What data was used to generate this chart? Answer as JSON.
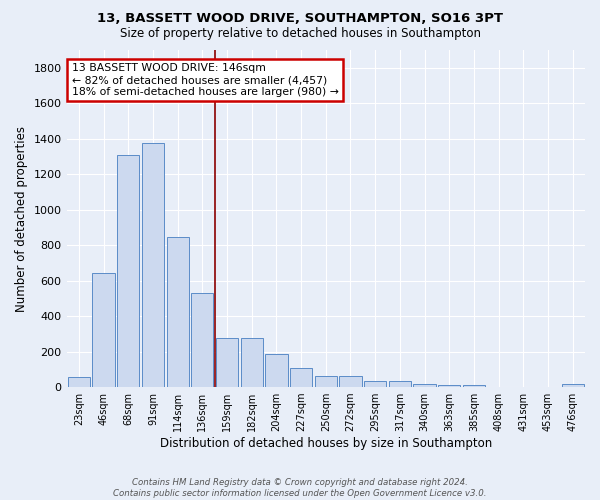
{
  "title_line1": "13, BASSETT WOOD DRIVE, SOUTHAMPTON, SO16 3PT",
  "title_line2": "Size of property relative to detached houses in Southampton",
  "xlabel": "Distribution of detached houses by size in Southampton",
  "ylabel": "Number of detached properties",
  "categories": [
    "23sqm",
    "46sqm",
    "68sqm",
    "91sqm",
    "114sqm",
    "136sqm",
    "159sqm",
    "182sqm",
    "204sqm",
    "227sqm",
    "250sqm",
    "272sqm",
    "295sqm",
    "317sqm",
    "340sqm",
    "363sqm",
    "385sqm",
    "408sqm",
    "431sqm",
    "453sqm",
    "476sqm"
  ],
  "values": [
    55,
    645,
    1310,
    1375,
    845,
    530,
    275,
    275,
    185,
    105,
    65,
    65,
    35,
    35,
    20,
    10,
    10,
    0,
    0,
    0,
    15
  ],
  "bar_facecolor": "#ccd9ef",
  "bar_edgecolor": "#5b8cc8",
  "background_color": "#e8eef8",
  "grid_color": "#ffffff",
  "red_line_x": 5.5,
  "annotation_text_line1": "13 BASSETT WOOD DRIVE: 146sqm",
  "annotation_text_line2": "← 82% of detached houses are smaller (4,457)",
  "annotation_text_line3": "18% of semi-detached houses are larger (980) →",
  "annotation_box_facecolor": "#ffffff",
  "annotation_border_color": "#cc0000",
  "footer_line1": "Contains HM Land Registry data © Crown copyright and database right 2024.",
  "footer_line2": "Contains public sector information licensed under the Open Government Licence v3.0.",
  "ylim": [
    0,
    1900
  ],
  "yticks": [
    0,
    200,
    400,
    600,
    800,
    1000,
    1200,
    1400,
    1600,
    1800
  ]
}
